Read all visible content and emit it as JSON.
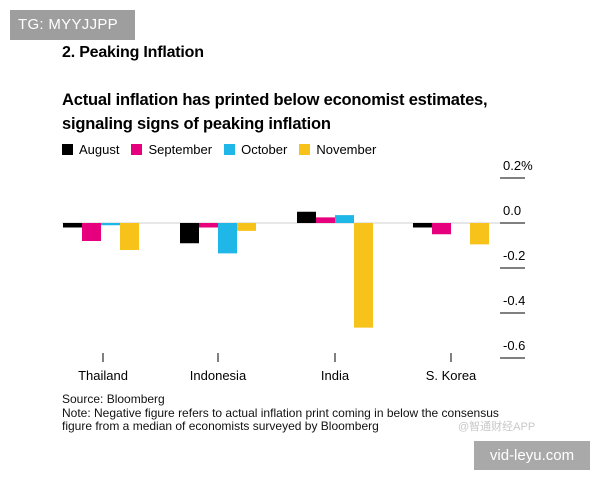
{
  "watermark": {
    "tg_label": "TG: MYYJJPP",
    "site_label": "vid-leyu.com",
    "faint_label": "@智通财经APP"
  },
  "section_title": "2. Peaking Inflation",
  "headline_line1": "Actual inflation has printed below economist estimates,",
  "headline_line2": "signaling signs of peaking inflation",
  "colors": {
    "August": "#000000",
    "September": "#e6007e",
    "October": "#1fb6e8",
    "November": "#f7c21a"
  },
  "chart_data": {
    "type": "bar",
    "categories": [
      "Thailand",
      "Indonesia",
      "India",
      "S. Korea"
    ],
    "series": [
      {
        "name": "August",
        "values": [
          -0.02,
          -0.09,
          0.05,
          -0.02
        ]
      },
      {
        "name": "September",
        "values": [
          -0.08,
          -0.02,
          0.025,
          -0.05
        ]
      },
      {
        "name": "October",
        "values": [
          -0.01,
          -0.135,
          0.035,
          0.0
        ]
      },
      {
        "name": "November",
        "values": [
          -0.12,
          -0.035,
          -0.465,
          -0.095
        ]
      }
    ],
    "ylim": [
      -0.6,
      0.2
    ],
    "yticks": [
      0.2,
      0.0,
      -0.2,
      -0.4,
      -0.6
    ],
    "ytick_labels": [
      "0.2%",
      "0.0",
      "-0.2",
      "-0.4",
      "-0.6"
    ],
    "axis_side": "right",
    "legend_position": "top-left"
  },
  "footer": {
    "source": "Source: Bloomberg",
    "note_line1": "Note: Negative figure refers to actual inflation print coming in below the consensus",
    "note_line2": "figure from a median of economists surveyed by Bloomberg"
  }
}
